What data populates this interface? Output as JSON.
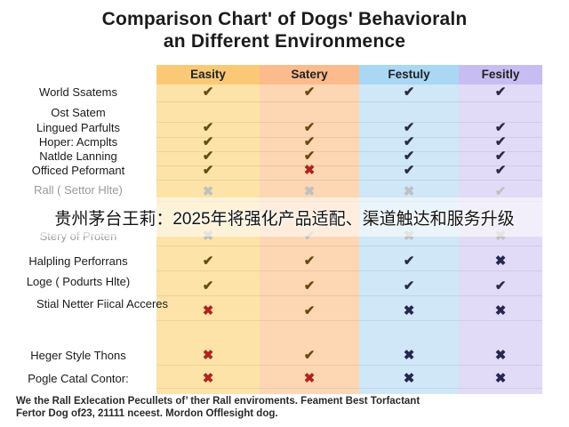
{
  "title_line1": "Comparison Chart' of Dogs' Behavioraln",
  "title_line2": "an Different Environmence",
  "footnote_line1": "We the Rall Exlecation Pecullets of’ ther Rall enviroments. Feament Best Torfactant",
  "footnote_line2": "Fertor Dog of23, 21111 nceest. Mordon Offlesight dog.",
  "overlay_banner": "贵州茅台王莉：2025年将强化产品适配、渠道触达和服务升级",
  "colors": {
    "col_orange": "#fde3a8",
    "col_peach": "#fdd7b4",
    "col_blue": "#cfe7f7",
    "col_purple": "#e2dbf7",
    "head_orange": "#fbc976",
    "head_peach": "#fbbb8c",
    "head_blue": "#a9d7f4",
    "head_purple": "#c8bdf2",
    "check": "#6b4a10",
    "cross": "#b0231c"
  },
  "icons": {
    "yes": "check-icon",
    "no": "cross-icon"
  },
  "chart_data": {
    "type": "table",
    "title": "Comparison Chart' of Dogs' Behavioraln an Different Environmence",
    "columns": [
      "Easity",
      "Satery",
      "Festuly",
      "Fesitly"
    ],
    "rows": [
      {
        "label": "World Ssatems",
        "values": [
          "yes",
          "yes",
          "yes",
          "yes"
        ]
      },
      {
        "label": "Ost Satem",
        "values": [
          "",
          "",
          "",
          ""
        ]
      },
      {
        "label": "Lingued Parfults",
        "values": [
          "yes",
          "yes",
          "yes",
          "yes"
        ]
      },
      {
        "label": "Hoper: Acmplts",
        "values": [
          "yes",
          "yes",
          "yes",
          "yes"
        ]
      },
      {
        "label": "Natlde Lanning",
        "values": [
          "yes",
          "yes",
          "yes",
          "yes"
        ]
      },
      {
        "label": "Officed Peformant",
        "values": [
          "yes",
          "no",
          "yes",
          "yes"
        ]
      },
      {
        "label": "Rall ( Settor Hlte)",
        "values": [
          "no",
          "no",
          "no",
          "yes"
        ],
        "faded": true
      },
      {
        "label": "Stery of Proten",
        "values": [
          "no",
          "yes",
          "no",
          "no"
        ],
        "faded": true
      },
      {
        "label": "Halpling Perforrans",
        "values": [
          "yes",
          "yes",
          "yes",
          "no"
        ]
      },
      {
        "label": "Loge ( Podurts Hlte)",
        "values": [
          "yes",
          "yes",
          "yes",
          "yes"
        ]
      },
      {
        "label": "Stial Netter Fiical Acceres",
        "values": [
          "no",
          "yes",
          "no",
          "no"
        ]
      },
      {
        "label": "Heger Style Thons",
        "values": [
          "no",
          "yes",
          "no",
          "no"
        ]
      },
      {
        "label": "Pogle Catal Contor:",
        "values": [
          "no",
          "no",
          "no",
          "no"
        ]
      }
    ]
  }
}
